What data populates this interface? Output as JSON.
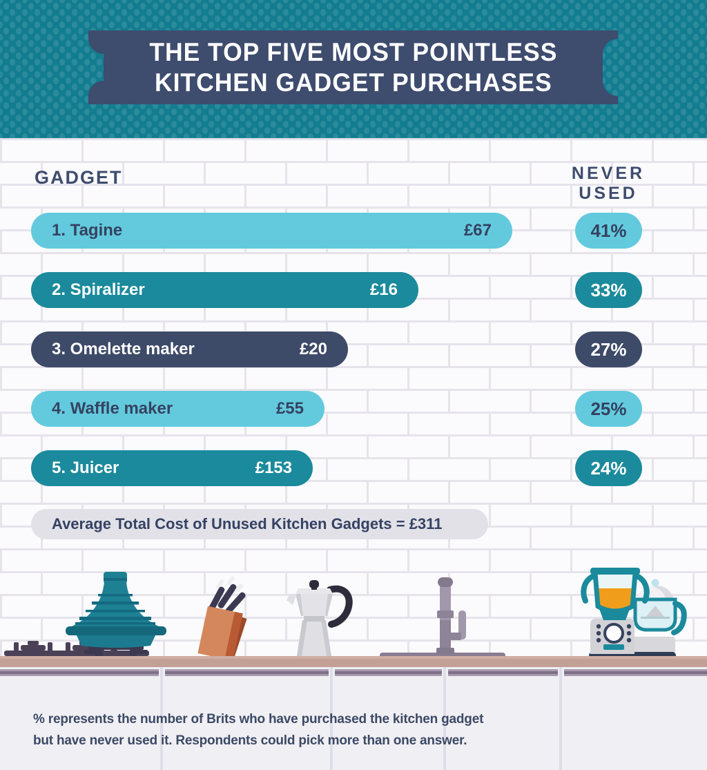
{
  "title": {
    "line1": "THE TOP FIVE MOST POINTLESS",
    "line2": "KITCHEN GADGET PURCHASES"
  },
  "columns": {
    "gadget": "GADGET",
    "never_used_line1": "NEVER",
    "never_used_line2": "USED"
  },
  "rows": [
    {
      "label": "1. Tagine",
      "price": "£67",
      "pct": 41,
      "pct_label": "41%",
      "color": "cyan"
    },
    {
      "label": "2. Spiralizer",
      "price": "£16",
      "pct": 33,
      "pct_label": "33%",
      "color": "teal"
    },
    {
      "label": "3. Omelette maker",
      "price": "£20",
      "pct": 27,
      "pct_label": "27%",
      "color": "navy"
    },
    {
      "label": "4. Waffle maker",
      "price": "£55",
      "pct": 25,
      "pct_label": "25%",
      "color": "cyan"
    },
    {
      "label": "5. Juicer",
      "price": "£153",
      "pct": 24,
      "pct_label": "24%",
      "color": "teal"
    }
  ],
  "summary": {
    "text": "Average Total Cost of Unused Kitchen Gadgets = £311"
  },
  "footnote": {
    "line1": "% represents the number of Brits who have purchased the kitchen gadget",
    "line2": "but have never used it. Respondents could pick more than one answer."
  },
  "palette": {
    "cyan": "#63CADD",
    "teal": "#1B8A9C",
    "navy": "#3D4A68",
    "text_navy": "#354262",
    "white": "#FFFFFF",
    "banner_bg": "#137D90",
    "banner_dot": "#2D8B9D",
    "plaque": "#3E4C6E",
    "summary_bg": "#E2E1E8",
    "counter": "#C2A095",
    "cabinet": "#F0EFF4"
  },
  "chart_data": {
    "type": "bar",
    "orientation": "horizontal",
    "title": "The Top Five Most Pointless Kitchen Gadget Purchases",
    "categories": [
      "Tagine",
      "Spiralizer",
      "Omelette maker",
      "Waffle maker",
      "Juicer"
    ],
    "series": [
      {
        "name": "Never Used (%)",
        "values": [
          41,
          33,
          27,
          25,
          24
        ]
      },
      {
        "name": "Price (£)",
        "values": [
          67,
          16,
          20,
          55,
          153
        ]
      }
    ],
    "bar_length_encodes": "Never Used (%)",
    "annotations": [
      "Average Total Cost of Unused Kitchen Gadgets = £311"
    ],
    "legend_position": "none",
    "grid": false
  }
}
